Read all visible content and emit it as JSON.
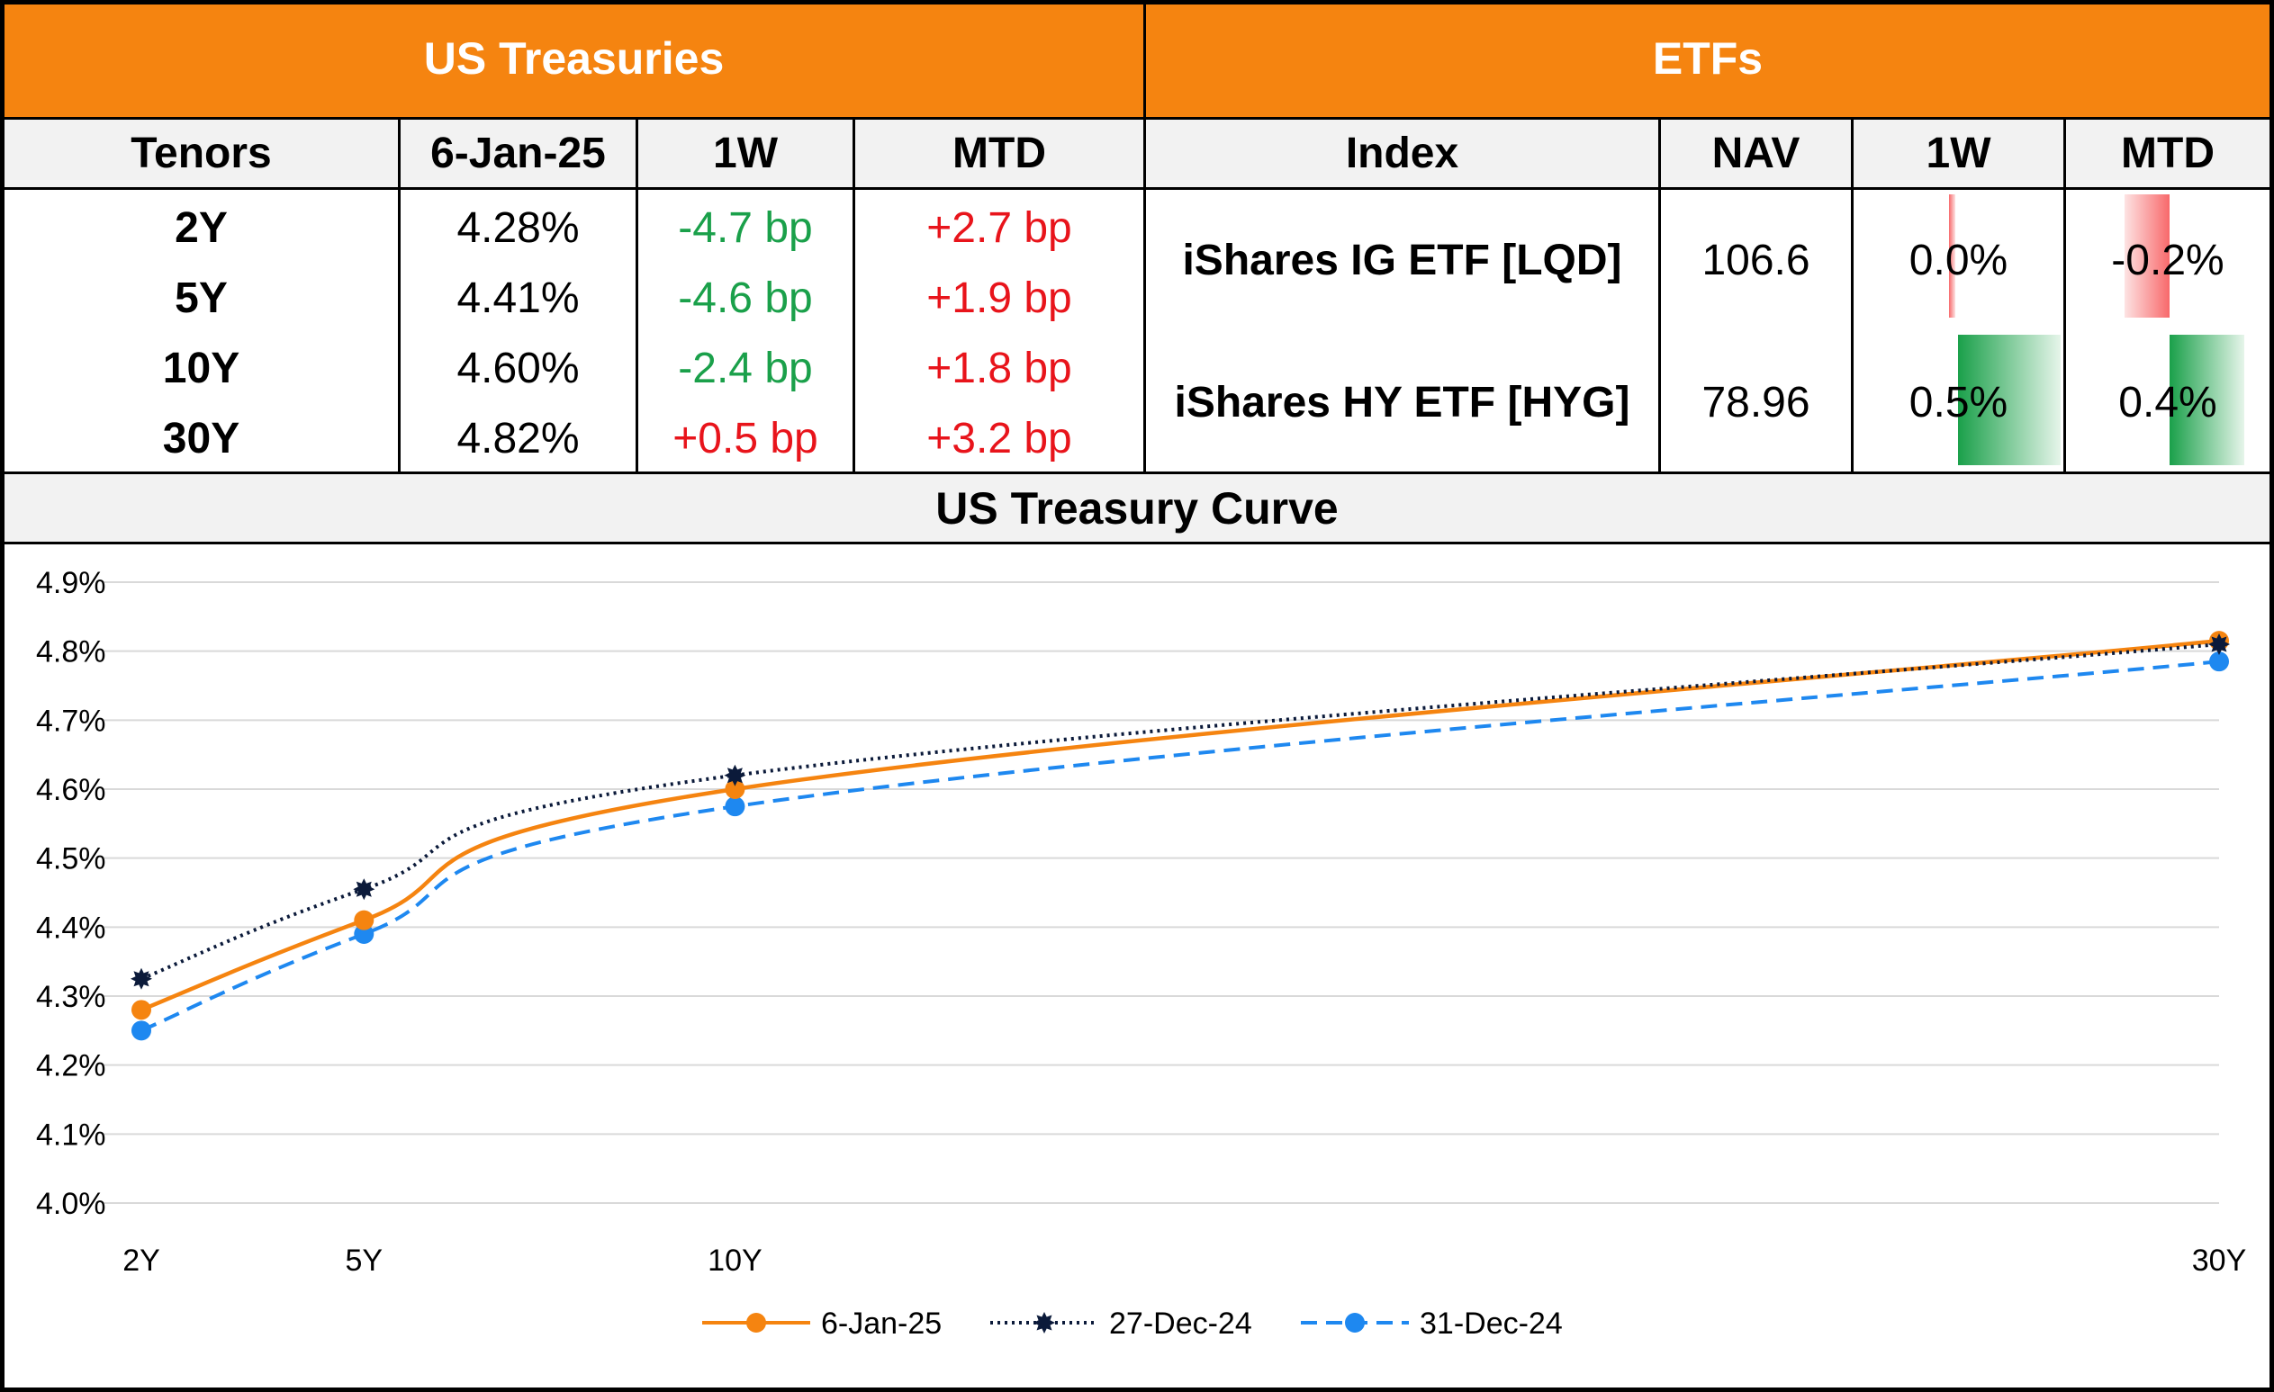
{
  "treasuries": {
    "title": "US Treasuries",
    "headers": [
      "Tenors",
      "6-Jan-25",
      "1W",
      "MTD"
    ],
    "rows": [
      {
        "tenor": "2Y",
        "yield": "4.28%",
        "w1": "-4.7 bp",
        "mtd": "+2.7 bp",
        "w1_color": "green",
        "mtd_color": "red"
      },
      {
        "tenor": "5Y",
        "yield": "4.41%",
        "w1": "-4.6 bp",
        "mtd": "+1.9 bp",
        "w1_color": "green",
        "mtd_color": "red"
      },
      {
        "tenor": "10Y",
        "yield": "4.60%",
        "w1": "-2.4 bp",
        "mtd": "+1.8 bp",
        "w1_color": "green",
        "mtd_color": "red"
      },
      {
        "tenor": "30Y",
        "yield": "4.82%",
        "w1": "+0.5 bp",
        "mtd": "+3.2 bp",
        "w1_color": "red",
        "mtd_color": "red"
      }
    ]
  },
  "etfs": {
    "title": "ETFs",
    "headers": [
      "Index",
      "NAV",
      "1W",
      "MTD"
    ],
    "rows": [
      {
        "name": "iShares IG ETF [LQD]",
        "nav": "106.6",
        "w1": "0.0%",
        "mtd": "-0.2%",
        "w1_value": 0.0,
        "mtd_value": -0.2
      },
      {
        "name": "iShares HY ETF [HYG]",
        "nav": "78.96",
        "w1": "0.5%",
        "mtd": "0.4%",
        "w1_value": 0.5,
        "mtd_value": 0.4
      }
    ]
  },
  "colors": {
    "header_orange": "#F58410",
    "positive_green": "#1AA04A",
    "negative_red": "#E8141B",
    "series_6jan": "#F58410",
    "series_27dec": "#0B1A3A",
    "series_31dec": "#1E88F0"
  },
  "chart_data": {
    "type": "line",
    "title": "US Treasury Curve",
    "x": [
      2,
      5,
      10,
      30
    ],
    "categories": [
      "2Y",
      "5Y",
      "10Y",
      "30Y"
    ],
    "ylim": [
      4.0,
      4.9
    ],
    "yticks": [
      "4.9%",
      "4.8%",
      "4.7%",
      "4.6%",
      "4.5%",
      "4.4%",
      "4.3%",
      "4.2%",
      "4.1%",
      "4.0%"
    ],
    "grid": true,
    "legend_position": "bottom",
    "series": [
      {
        "name": "6-Jan-25",
        "values": [
          4.28,
          4.41,
          4.6,
          4.815
        ],
        "style": "solid",
        "color": "#F58410"
      },
      {
        "name": "27-Dec-24",
        "values": [
          4.325,
          4.455,
          4.62,
          4.81
        ],
        "style": "dotted",
        "color": "#0B1A3A"
      },
      {
        "name": "31-Dec-24",
        "values": [
          4.25,
          4.39,
          4.575,
          4.785
        ],
        "style": "dashed",
        "color": "#1E88F0"
      }
    ]
  }
}
